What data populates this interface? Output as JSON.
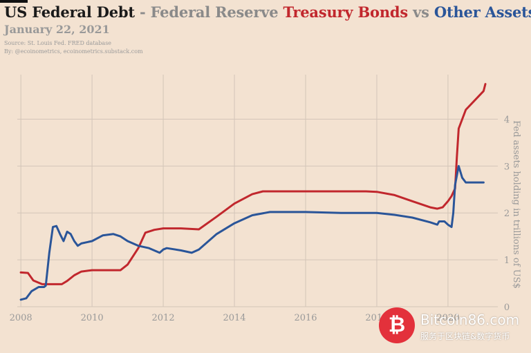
{
  "header": {
    "title_part1": "US Federal Debt",
    "title_sep": " - Federal Reserve ",
    "title_red": "Treasury Bonds",
    "title_vs": " vs ",
    "title_blue": "Other Assets",
    "date": "January 22, 2021",
    "source": "Source: St. Louis Fed. FRED database",
    "byline": "By: @ecoinometrics, ecoinometrics.substack.com"
  },
  "watermark": {
    "logo_glyph": "₿",
    "name": "Bitcoin86.com",
    "tagline": "服务于区块链&数字货币"
  },
  "colors": {
    "background": "#f3e2d1",
    "treasury": "#c1272d",
    "other": "#2a5599",
    "grid": "#d3c5b8"
  },
  "chart_data": {
    "type": "line",
    "title": "US Federal Debt - Federal Reserve Treasury Bonds vs Other Assets",
    "xlabel": "",
    "ylabel": "Fed assets holding in trillions of US$",
    "xlim": [
      2007.9,
      2021.4
    ],
    "ylim": [
      0,
      4.95
    ],
    "xticks": [
      2008,
      2010,
      2012,
      2014,
      2016,
      2018,
      2020
    ],
    "yticks": [
      0,
      1,
      2,
      3,
      4
    ],
    "grid": true,
    "legend": "none",
    "series": [
      {
        "name": "Treasury Bonds",
        "color": "#c1272d",
        "x": [
          2008.0,
          2008.2,
          2008.35,
          2008.6,
          2008.8,
          2009.0,
          2009.15,
          2009.3,
          2009.5,
          2009.7,
          2010.0,
          2010.5,
          2010.8,
          2011.0,
          2011.3,
          2011.5,
          2011.75,
          2012.0,
          2012.5,
          2013.0,
          2013.5,
          2014.0,
          2014.5,
          2014.8,
          2015.0,
          2016.0,
          2017.0,
          2017.7,
          2018.0,
          2018.5,
          2019.0,
          2019.5,
          2019.7,
          2019.85,
          2020.0,
          2020.1,
          2020.15,
          2020.2,
          2020.25,
          2020.3,
          2020.5,
          2021.0,
          2021.05
        ],
        "y": [
          0.73,
          0.72,
          0.56,
          0.48,
          0.48,
          0.48,
          0.48,
          0.55,
          0.67,
          0.75,
          0.78,
          0.78,
          0.78,
          0.9,
          1.25,
          1.58,
          1.64,
          1.67,
          1.67,
          1.65,
          1.92,
          2.2,
          2.4,
          2.46,
          2.46,
          2.46,
          2.46,
          2.46,
          2.45,
          2.38,
          2.25,
          2.12,
          2.09,
          2.12,
          2.25,
          2.36,
          2.44,
          2.52,
          3.2,
          3.8,
          4.2,
          4.6,
          4.75
        ]
      },
      {
        "name": "Other Assets",
        "color": "#2a5599",
        "x": [
          2008.0,
          2008.15,
          2008.3,
          2008.5,
          2008.65,
          2008.7,
          2008.8,
          2008.9,
          2009.0,
          2009.1,
          2009.2,
          2009.3,
          2009.4,
          2009.5,
          2009.6,
          2009.7,
          2010.0,
          2010.3,
          2010.6,
          2010.8,
          2011.0,
          2011.3,
          2011.6,
          2011.9,
          2012.0,
          2012.1,
          2012.5,
          2012.8,
          2013.0,
          2013.5,
          2014.0,
          2014.5,
          2015.0,
          2016.0,
          2017.0,
          2018.0,
          2018.5,
          2019.0,
          2019.5,
          2019.7,
          2019.75,
          2019.9,
          2020.0,
          2020.1,
          2020.15,
          2020.2,
          2020.3,
          2020.4,
          2020.5,
          2020.7,
          2020.9,
          2021.0
        ],
        "y": [
          0.15,
          0.18,
          0.33,
          0.42,
          0.42,
          0.45,
          1.15,
          1.7,
          1.72,
          1.55,
          1.4,
          1.6,
          1.55,
          1.4,
          1.3,
          1.35,
          1.4,
          1.52,
          1.55,
          1.5,
          1.4,
          1.3,
          1.25,
          1.15,
          1.22,
          1.25,
          1.2,
          1.15,
          1.22,
          1.55,
          1.78,
          1.95,
          2.02,
          2.02,
          2.0,
          2.0,
          1.96,
          1.9,
          1.8,
          1.75,
          1.82,
          1.82,
          1.75,
          1.7,
          2.0,
          2.6,
          3.0,
          2.75,
          2.65,
          2.65,
          2.65,
          2.65
        ]
      }
    ]
  }
}
